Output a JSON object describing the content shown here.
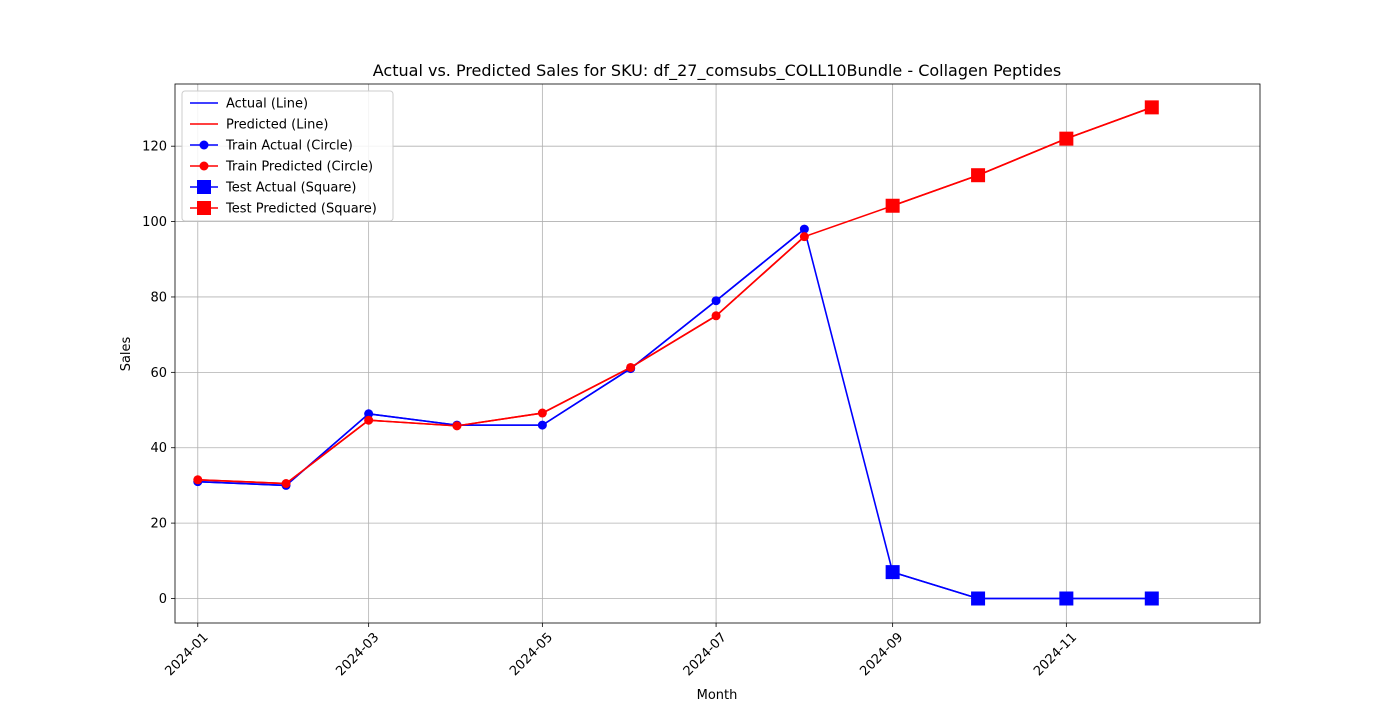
{
  "chart_data": {
    "type": "line",
    "title": "Actual vs. Predicted Sales for SKU: df_27_comsubs_COLL10Bundle - Collagen Peptides",
    "xlabel": "Month",
    "ylabel": "Sales",
    "x_range": [
      "2023-12-24",
      "2025-01-08"
    ],
    "ylim": [
      -6.5,
      136.5
    ],
    "x_ticks": [
      "2024-01-01",
      "2024-03-01",
      "2024-05-01",
      "2024-07-01",
      "2024-09-01",
      "2024-11-01"
    ],
    "x_tick_labels": [
      "2024-01",
      "2024-03",
      "2024-05",
      "2024-07",
      "2024-09",
      "2024-11"
    ],
    "y_ticks": [
      0,
      20,
      40,
      60,
      80,
      100,
      120
    ],
    "y_tick_labels": [
      "0",
      "20",
      "40",
      "60",
      "80",
      "100",
      "120"
    ],
    "grid": true,
    "legend_position": "top-left",
    "x": [
      "2024-01-01",
      "2024-02-01",
      "2024-03-01",
      "2024-04-01",
      "2024-05-01",
      "2024-06-01",
      "2024-07-01",
      "2024-08-01",
      "2024-09-01",
      "2024-10-01",
      "2024-11-01",
      "2024-12-01"
    ],
    "series": [
      {
        "name": "Actual (Line)",
        "kind": "line",
        "color": "#0000ff",
        "values": [
          31,
          30,
          49,
          46,
          46,
          61,
          79,
          98,
          7,
          0,
          0,
          0
        ]
      },
      {
        "name": "Predicted (Line)",
        "kind": "line",
        "color": "#ff0000",
        "values": [
          31.5,
          30.5,
          47.3,
          45.8,
          49.2,
          61.3,
          75,
          96,
          104.2,
          112.3,
          122,
          130.3
        ]
      },
      {
        "name": "Train Actual (Circle)",
        "kind": "circle",
        "color": "#0000ff",
        "x": [
          "2024-01-01",
          "2024-02-01",
          "2024-03-01",
          "2024-04-01",
          "2024-05-01",
          "2024-06-01",
          "2024-07-01",
          "2024-08-01"
        ],
        "values": [
          31,
          30,
          49,
          46,
          46,
          61,
          79,
          98
        ]
      },
      {
        "name": "Train Predicted (Circle)",
        "kind": "circle",
        "color": "#ff0000",
        "x": [
          "2024-01-01",
          "2024-02-01",
          "2024-03-01",
          "2024-04-01",
          "2024-05-01",
          "2024-06-01",
          "2024-07-01",
          "2024-08-01"
        ],
        "values": [
          31.5,
          30.5,
          47.3,
          45.8,
          49.2,
          61.3,
          75,
          96
        ]
      },
      {
        "name": "Test Actual (Square)",
        "kind": "square",
        "color": "#0000ff",
        "x": [
          "2024-09-01",
          "2024-10-01",
          "2024-11-01",
          "2024-12-01"
        ],
        "values": [
          7,
          0,
          0,
          0
        ]
      },
      {
        "name": "Test Predicted (Square)",
        "kind": "square",
        "color": "#ff0000",
        "x": [
          "2024-09-01",
          "2024-10-01",
          "2024-11-01",
          "2024-12-01"
        ],
        "values": [
          104.2,
          112.3,
          122,
          130.3
        ]
      }
    ]
  }
}
